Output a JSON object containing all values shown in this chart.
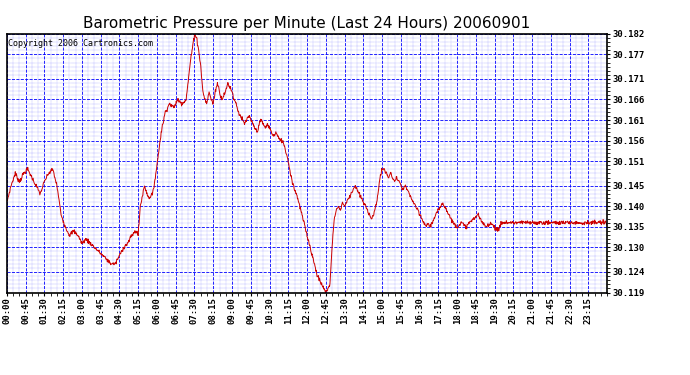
{
  "title": "Barometric Pressure per Minute (Last 24 Hours) 20060901",
  "copyright": "Copyright 2006 Cartronics.com",
  "background_color": "#ffffff",
  "plot_bg_color": "#ffffff",
  "grid_color": "#0000ff",
  "line_color": "#cc0000",
  "border_color": "#000000",
  "ylim": [
    30.119,
    30.182
  ],
  "ytick_values": [
    30.182,
    30.177,
    30.171,
    30.166,
    30.161,
    30.156,
    30.151,
    30.145,
    30.14,
    30.135,
    30.13,
    30.124,
    30.119
  ],
  "xtick_labels": [
    "00:00",
    "00:45",
    "01:30",
    "02:15",
    "03:00",
    "03:45",
    "04:30",
    "05:15",
    "06:00",
    "06:45",
    "07:30",
    "08:15",
    "09:00",
    "09:45",
    "10:30",
    "11:15",
    "12:00",
    "12:45",
    "13:30",
    "14:15",
    "15:00",
    "15:45",
    "16:30",
    "17:15",
    "18:00",
    "18:45",
    "19:30",
    "20:15",
    "21:00",
    "21:45",
    "22:30",
    "23:15"
  ],
  "title_fontsize": 11,
  "axis_fontsize": 6.5,
  "copyright_fontsize": 6,
  "waypoints": [
    [
      0,
      30.141
    ],
    [
      10,
      30.145
    ],
    [
      20,
      30.148
    ],
    [
      30,
      30.146
    ],
    [
      40,
      30.148
    ],
    [
      50,
      30.149
    ],
    [
      60,
      30.147
    ],
    [
      70,
      30.145
    ],
    [
      80,
      30.143
    ],
    [
      90,
      30.146
    ],
    [
      100,
      30.148
    ],
    [
      110,
      30.149
    ],
    [
      115,
      30.147
    ],
    [
      120,
      30.145
    ],
    [
      130,
      30.138
    ],
    [
      140,
      30.135
    ],
    [
      150,
      30.133
    ],
    [
      160,
      30.134
    ],
    [
      170,
      30.133
    ],
    [
      180,
      30.131
    ],
    [
      190,
      30.132
    ],
    [
      200,
      30.131
    ],
    [
      210,
      30.13
    ],
    [
      220,
      30.129
    ],
    [
      230,
      30.128
    ],
    [
      240,
      30.127
    ],
    [
      250,
      30.126
    ],
    [
      260,
      30.126
    ],
    [
      270,
      30.128
    ],
    [
      280,
      30.13
    ],
    [
      290,
      30.131
    ],
    [
      300,
      30.133
    ],
    [
      310,
      30.134
    ],
    [
      315,
      30.133
    ],
    [
      320,
      30.14
    ],
    [
      330,
      30.145
    ],
    [
      340,
      30.142
    ],
    [
      350,
      30.143
    ],
    [
      360,
      30.15
    ],
    [
      370,
      30.158
    ],
    [
      380,
      30.163
    ],
    [
      390,
      30.165
    ],
    [
      400,
      30.164
    ],
    [
      410,
      30.166
    ],
    [
      420,
      30.165
    ],
    [
      430,
      30.166
    ],
    [
      440,
      30.175
    ],
    [
      450,
      30.182
    ],
    [
      455,
      30.181
    ],
    [
      460,
      30.178
    ],
    [
      465,
      30.174
    ],
    [
      470,
      30.168
    ],
    [
      475,
      30.166
    ],
    [
      480,
      30.165
    ],
    [
      485,
      30.168
    ],
    [
      490,
      30.166
    ],
    [
      495,
      30.165
    ],
    [
      500,
      30.168
    ],
    [
      505,
      30.17
    ],
    [
      510,
      30.168
    ],
    [
      515,
      30.166
    ],
    [
      520,
      30.167
    ],
    [
      525,
      30.168
    ],
    [
      530,
      30.17
    ],
    [
      535,
      30.169
    ],
    [
      540,
      30.168
    ],
    [
      545,
      30.166
    ],
    [
      550,
      30.165
    ],
    [
      555,
      30.163
    ],
    [
      560,
      30.162
    ],
    [
      565,
      30.161
    ],
    [
      570,
      30.16
    ],
    [
      575,
      30.161
    ],
    [
      580,
      30.162
    ],
    [
      585,
      30.161
    ],
    [
      590,
      30.16
    ],
    [
      595,
      30.159
    ],
    [
      600,
      30.158
    ],
    [
      605,
      30.16
    ],
    [
      610,
      30.161
    ],
    [
      615,
      30.16
    ],
    [
      620,
      30.159
    ],
    [
      625,
      30.16
    ],
    [
      630,
      30.159
    ],
    [
      635,
      30.158
    ],
    [
      640,
      30.157
    ],
    [
      645,
      30.158
    ],
    [
      650,
      30.157
    ],
    [
      655,
      30.156
    ],
    [
      660,
      30.156
    ],
    [
      665,
      30.155
    ],
    [
      670,
      30.153
    ],
    [
      675,
      30.151
    ],
    [
      680,
      30.148
    ],
    [
      685,
      30.146
    ],
    [
      690,
      30.144
    ],
    [
      695,
      30.143
    ],
    [
      700,
      30.141
    ],
    [
      705,
      30.139
    ],
    [
      710,
      30.137
    ],
    [
      715,
      30.135
    ],
    [
      720,
      30.133
    ],
    [
      725,
      30.131
    ],
    [
      730,
      30.129
    ],
    [
      735,
      30.127
    ],
    [
      740,
      30.125
    ],
    [
      745,
      30.123
    ],
    [
      750,
      30.122
    ],
    [
      755,
      30.121
    ],
    [
      760,
      30.12
    ],
    [
      765,
      30.119
    ],
    [
      770,
      30.12
    ],
    [
      775,
      30.121
    ],
    [
      780,
      30.13
    ],
    [
      785,
      30.137
    ],
    [
      790,
      30.139
    ],
    [
      795,
      30.14
    ],
    [
      800,
      30.139
    ],
    [
      805,
      30.141
    ],
    [
      810,
      30.14
    ],
    [
      815,
      30.141
    ],
    [
      820,
      30.142
    ],
    [
      825,
      30.143
    ],
    [
      830,
      30.144
    ],
    [
      835,
      30.145
    ],
    [
      840,
      30.144
    ],
    [
      845,
      30.143
    ],
    [
      850,
      30.142
    ],
    [
      855,
      30.141
    ],
    [
      860,
      30.14
    ],
    [
      865,
      30.139
    ],
    [
      870,
      30.138
    ],
    [
      875,
      30.137
    ],
    [
      880,
      30.138
    ],
    [
      885,
      30.14
    ],
    [
      890,
      30.143
    ],
    [
      895,
      30.147
    ],
    [
      900,
      30.149
    ],
    [
      905,
      30.149
    ],
    [
      910,
      30.148
    ],
    [
      915,
      30.147
    ],
    [
      920,
      30.148
    ],
    [
      925,
      30.147
    ],
    [
      930,
      30.146
    ],
    [
      935,
      30.147
    ],
    [
      940,
      30.146
    ],
    [
      945,
      30.145
    ],
    [
      950,
      30.144
    ],
    [
      955,
      30.145
    ],
    [
      960,
      30.144
    ],
    [
      965,
      30.143
    ],
    [
      970,
      30.142
    ],
    [
      975,
      30.141
    ],
    [
      980,
      30.14
    ],
    [
      985,
      30.139
    ],
    [
      990,
      30.138
    ],
    [
      995,
      30.137
    ],
    [
      1000,
      30.136
    ],
    [
      1005,
      30.135
    ],
    [
      1010,
      30.136
    ],
    [
      1015,
      30.135
    ],
    [
      1020,
      30.136
    ],
    [
      1025,
      30.137
    ],
    [
      1030,
      30.138
    ],
    [
      1035,
      30.139
    ],
    [
      1040,
      30.14
    ],
    [
      1045,
      30.141
    ],
    [
      1050,
      30.14
    ],
    [
      1055,
      30.139
    ],
    [
      1060,
      30.138
    ],
    [
      1065,
      30.137
    ],
    [
      1070,
      30.136
    ],
    [
      1080,
      30.135
    ],
    [
      1090,
      30.136
    ],
    [
      1100,
      30.135
    ],
    [
      1110,
      30.136
    ],
    [
      1120,
      30.137
    ],
    [
      1130,
      30.138
    ],
    [
      1140,
      30.136
    ],
    [
      1150,
      30.135
    ],
    [
      1160,
      30.136
    ],
    [
      1170,
      30.135
    ],
    [
      1180,
      30.134
    ],
    [
      1185,
      30.136
    ]
  ]
}
